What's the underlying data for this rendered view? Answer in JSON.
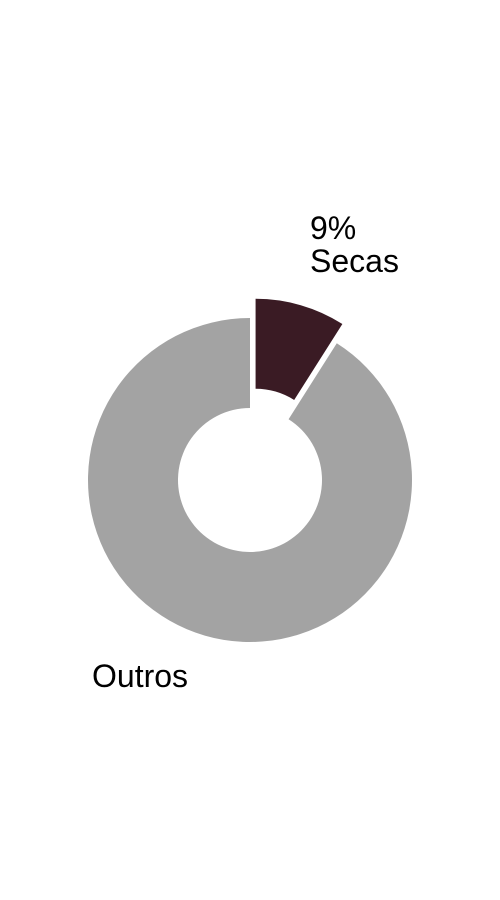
{
  "chart_data": {
    "type": "pie",
    "style": "donut",
    "slices": [
      {
        "label": "Secas",
        "value_label": "9%",
        "value": 9,
        "color": "#3a1b24",
        "exploded": true
      },
      {
        "label": "Outros",
        "value_label": "",
        "value": 91,
        "color": "#a3a3a3",
        "exploded": false
      }
    ],
    "legend": "none"
  }
}
